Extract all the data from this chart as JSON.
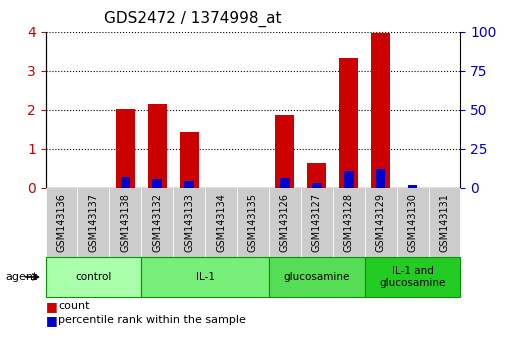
{
  "title": "GDS2472 / 1374998_at",
  "samples": [
    "GSM143136",
    "GSM143137",
    "GSM143138",
    "GSM143132",
    "GSM143133",
    "GSM143134",
    "GSM143135",
    "GSM143126",
    "GSM143127",
    "GSM143128",
    "GSM143129",
    "GSM143130",
    "GSM143131"
  ],
  "count_values": [
    0.0,
    0.0,
    2.02,
    2.15,
    1.42,
    0.0,
    0.0,
    1.87,
    0.62,
    3.32,
    3.98,
    0.0,
    0.0
  ],
  "percentile_values": [
    0.0,
    0.0,
    7.0,
    5.5,
    4.5,
    0.0,
    0.0,
    6.3,
    3.0,
    10.5,
    12.0,
    2.0,
    0.0
  ],
  "count_color": "#cc0000",
  "percentile_color": "#0000cc",
  "ylim_left": [
    0,
    4
  ],
  "ylim_right": [
    0,
    100
  ],
  "yticks_left": [
    0,
    1,
    2,
    3,
    4
  ],
  "yticks_right": [
    0,
    25,
    50,
    75,
    100
  ],
  "groups": [
    {
      "label": "control",
      "start": 0,
      "end": 3,
      "color": "#aaffaa"
    },
    {
      "label": "IL-1",
      "start": 3,
      "end": 7,
      "color": "#77ee77"
    },
    {
      "label": "glucosamine",
      "start": 7,
      "end": 10,
      "color": "#55dd55"
    },
    {
      "label": "IL-1 and\nglucosamine",
      "start": 10,
      "end": 13,
      "color": "#22cc22"
    }
  ],
  "agent_label": "agent",
  "bar_width": 0.6,
  "background_color": "#ffffff",
  "plot_bg_color": "#ffffff",
  "grid_color": "#000000",
  "tick_label_color_left": "#cc0000",
  "tick_label_color_right": "#0000cc",
  "title_fontsize": 11,
  "axis_fontsize": 7,
  "legend_fontsize": 8,
  "xticklabel_bg": "#cccccc"
}
